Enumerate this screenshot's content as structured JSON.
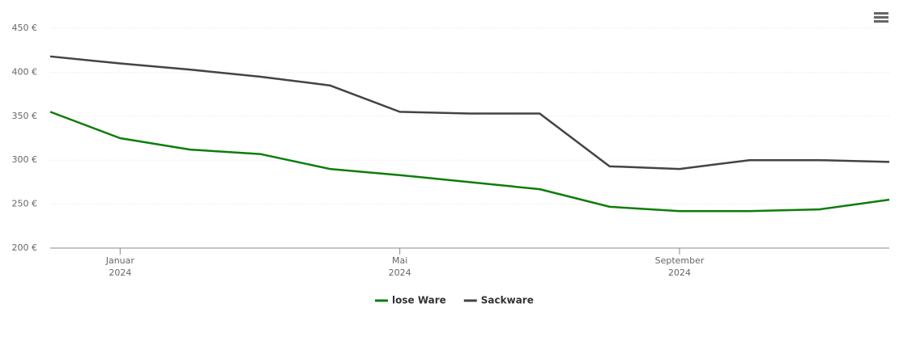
{
  "chart_data": {
    "type": "line",
    "x": [
      "2023-12",
      "2024-01",
      "2024-02",
      "2024-03",
      "2024-04",
      "2024-05",
      "2024-06",
      "2024-07",
      "2024-08",
      "2024-09",
      "2024-10",
      "2024-11",
      "2024-12"
    ],
    "series": [
      {
        "name": "lose Ware",
        "color": "#0b7d0b",
        "values": [
          355,
          325,
          312,
          307,
          290,
          283,
          275,
          267,
          247,
          242,
          242,
          244,
          255
        ]
      },
      {
        "name": "Sackware",
        "color": "#434348",
        "values": [
          418,
          410,
          403,
          395,
          385,
          355,
          353,
          353,
          293,
          290,
          300,
          300,
          298
        ]
      }
    ],
    "xlim": [
      "2023-12",
      "2024-12"
    ],
    "xticks": [
      {
        "value": "2024-01",
        "label": [
          "Januar",
          "2024"
        ]
      },
      {
        "value": "2024-05",
        "label": [
          "Mai",
          "2024"
        ]
      },
      {
        "value": "2024-09",
        "label": [
          "September",
          "2024"
        ]
      }
    ],
    "ylim": [
      200,
      450
    ],
    "yticks": [
      {
        "value": 200,
        "label": "200 €"
      },
      {
        "value": 250,
        "label": "250 €"
      },
      {
        "value": 300,
        "label": "300 €"
      },
      {
        "value": 350,
        "label": "350 €"
      },
      {
        "value": 400,
        "label": "400 €"
      },
      {
        "value": 450,
        "label": "450 €"
      }
    ],
    "grid": true
  }
}
